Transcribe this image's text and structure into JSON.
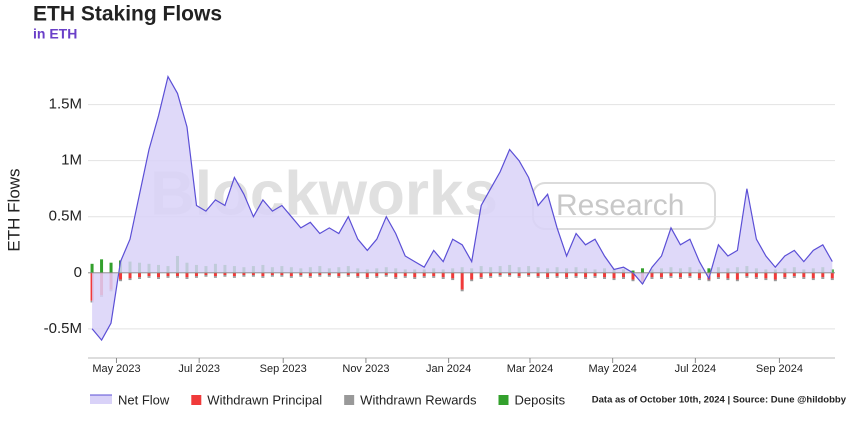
{
  "chart_data": {
    "type": "area-bar",
    "title": "ETH Staking Flows",
    "subtitle": "in ETH",
    "y_label": "ETH Flows",
    "watermark": [
      "Blockworks",
      "Research"
    ],
    "note": "Data as of October 10th, 2024 | Source: Dune @hildobby",
    "grid": true,
    "legend": "bottom",
    "x": [
      "2023-04-13",
      "2023-04-20",
      "2023-04-27",
      "2023-05-04",
      "2023-05-11",
      "2023-05-18",
      "2023-05-25",
      "2023-06-01",
      "2023-06-08",
      "2023-06-15",
      "2023-06-22",
      "2023-06-29",
      "2023-07-06",
      "2023-07-13",
      "2023-07-20",
      "2023-07-27",
      "2023-08-03",
      "2023-08-10",
      "2023-08-17",
      "2023-08-24",
      "2023-08-31",
      "2023-09-07",
      "2023-09-14",
      "2023-09-21",
      "2023-09-28",
      "2023-10-05",
      "2023-10-12",
      "2023-10-19",
      "2023-10-26",
      "2023-11-02",
      "2023-11-09",
      "2023-11-16",
      "2023-11-23",
      "2023-11-30",
      "2023-12-07",
      "2023-12-14",
      "2023-12-21",
      "2023-12-28",
      "2024-01-04",
      "2024-01-11",
      "2024-01-18",
      "2024-01-25",
      "2024-02-01",
      "2024-02-08",
      "2024-02-15",
      "2024-02-22",
      "2024-02-29",
      "2024-03-07",
      "2024-03-14",
      "2024-03-21",
      "2024-03-28",
      "2024-04-04",
      "2024-04-11",
      "2024-04-18",
      "2024-04-25",
      "2024-05-02",
      "2024-05-09",
      "2024-05-16",
      "2024-05-23",
      "2024-05-30",
      "2024-06-06",
      "2024-06-13",
      "2024-06-20",
      "2024-06-27",
      "2024-07-04",
      "2024-07-11",
      "2024-07-18",
      "2024-07-25",
      "2024-08-01",
      "2024-08-08",
      "2024-08-15",
      "2024-08-22",
      "2024-08-29",
      "2024-09-05",
      "2024-09-12",
      "2024-09-19",
      "2024-09-26",
      "2024-10-03",
      "2024-10-10"
    ],
    "xlim": [
      "2023-04-10",
      "2024-10-12"
    ],
    "xticks": [
      {
        "value": "2023-05-01",
        "label": "May 2023"
      },
      {
        "value": "2023-07-01",
        "label": "Jul 2023"
      },
      {
        "value": "2023-09-01",
        "label": "Sep 2023"
      },
      {
        "value": "2023-11-01",
        "label": "Nov 2023"
      },
      {
        "value": "2024-01-01",
        "label": "Jan 2024"
      },
      {
        "value": "2024-03-01",
        "label": "Mar 2024"
      },
      {
        "value": "2024-05-01",
        "label": "May 2024"
      },
      {
        "value": "2024-07-01",
        "label": "Jul 2024"
      },
      {
        "value": "2024-09-01",
        "label": "Sep 2024"
      }
    ],
    "ylim": [
      -760000,
      1880000
    ],
    "yticks": [
      {
        "value": -500000,
        "label": "-0.5M"
      },
      0,
      {
        "value": 500000,
        "label": "0.5M"
      },
      {
        "value": 1000000,
        "label": "1M"
      },
      {
        "value": 1500000,
        "label": "1.5M"
      }
    ],
    "series": [
      {
        "name": "Net Flow",
        "kind": "area",
        "color": "#5b4fd6",
        "fill": "#d9d2f8",
        "values": [
          -500000,
          -600000,
          -450000,
          100000,
          300000,
          700000,
          1100000,
          1400000,
          1750000,
          1600000,
          1300000,
          600000,
          550000,
          650000,
          600000,
          850000,
          700000,
          500000,
          650000,
          550000,
          600000,
          500000,
          400000,
          450000,
          350000,
          400000,
          350000,
          500000,
          300000,
          200000,
          300000,
          500000,
          350000,
          150000,
          100000,
          50000,
          200000,
          100000,
          300000,
          250000,
          100000,
          600000,
          750000,
          900000,
          1100000,
          1000000,
          850000,
          600000,
          700000,
          400000,
          150000,
          350000,
          250000,
          300000,
          150000,
          30000,
          50000,
          0,
          -100000,
          50000,
          150000,
          400000,
          250000,
          300000,
          100000,
          -50000,
          250000,
          150000,
          200000,
          750000,
          300000,
          150000,
          50000,
          150000,
          200000,
          100000,
          200000,
          250000,
          100000
        ]
      },
      {
        "name": "Withdrawn Principal",
        "kind": "bar",
        "color": "#f03a3a",
        "values": [
          -250000,
          -200000,
          -150000,
          -60000,
          -50000,
          -40000,
          -30000,
          -40000,
          -30000,
          -30000,
          -40000,
          -30000,
          -20000,
          -30000,
          -20000,
          -30000,
          -20000,
          -20000,
          -30000,
          -20000,
          -20000,
          -30000,
          -20000,
          -30000,
          -20000,
          -20000,
          -30000,
          -20000,
          -30000,
          -40000,
          -30000,
          -20000,
          -40000,
          -30000,
          -40000,
          -30000,
          -30000,
          -40000,
          -50000,
          -150000,
          -60000,
          -40000,
          -30000,
          -20000,
          -20000,
          -30000,
          -20000,
          -30000,
          -40000,
          -30000,
          -40000,
          -30000,
          -40000,
          -30000,
          -40000,
          -50000,
          -40000,
          -60000,
          -80000,
          -40000,
          -40000,
          -30000,
          -40000,
          -30000,
          -50000,
          -60000,
          -40000,
          -50000,
          -60000,
          -30000,
          -40000,
          -50000,
          -60000,
          -40000,
          -30000,
          -40000,
          -50000,
          -40000,
          -50000
        ]
      },
      {
        "name": "Withdrawn Rewards",
        "kind": "bar",
        "color": "#999999",
        "values": [
          -15000,
          -15000,
          -15000,
          -15000,
          -15000,
          -15000,
          -15000,
          -15000,
          -15000,
          -15000,
          -15000,
          -15000,
          -15000,
          -15000,
          -15000,
          -15000,
          -15000,
          -15000,
          -15000,
          -15000,
          -15000,
          -15000,
          -15000,
          -15000,
          -15000,
          -15000,
          -15000,
          -15000,
          -15000,
          -15000,
          -15000,
          -15000,
          -15000,
          -15000,
          -15000,
          -15000,
          -15000,
          -15000,
          -15000,
          -15000,
          -15000,
          -15000,
          -15000,
          -15000,
          -15000,
          -15000,
          -15000,
          -15000,
          -15000,
          -15000,
          -15000,
          -15000,
          -15000,
          -15000,
          -15000,
          -15000,
          -15000,
          -15000,
          -15000,
          -15000,
          -15000,
          -15000,
          -15000,
          -15000,
          -15000,
          -15000,
          -15000,
          -15000,
          -15000,
          -15000,
          -15000,
          -15000,
          -15000,
          -15000,
          -15000,
          -15000,
          -15000,
          -15000,
          -15000
        ]
      },
      {
        "name": "Deposits",
        "kind": "bar",
        "color": "#33a02c",
        "values": [
          80000,
          120000,
          90000,
          110000,
          100000,
          90000,
          80000,
          70000,
          60000,
          150000,
          90000,
          70000,
          60000,
          80000,
          70000,
          60000,
          50000,
          60000,
          70000,
          50000,
          60000,
          50000,
          40000,
          50000,
          60000,
          40000,
          50000,
          60000,
          40000,
          30000,
          40000,
          50000,
          40000,
          30000,
          30000,
          30000,
          40000,
          30000,
          40000,
          50000,
          40000,
          60000,
          50000,
          60000,
          70000,
          50000,
          60000,
          50000,
          40000,
          50000,
          40000,
          50000,
          40000,
          30000,
          40000,
          30000,
          30000,
          20000,
          40000,
          30000,
          40000,
          50000,
          40000,
          50000,
          30000,
          40000,
          50000,
          40000,
          50000,
          60000,
          40000,
          30000,
          30000,
          40000,
          50000,
          30000,
          40000,
          50000,
          30000
        ]
      }
    ]
  }
}
